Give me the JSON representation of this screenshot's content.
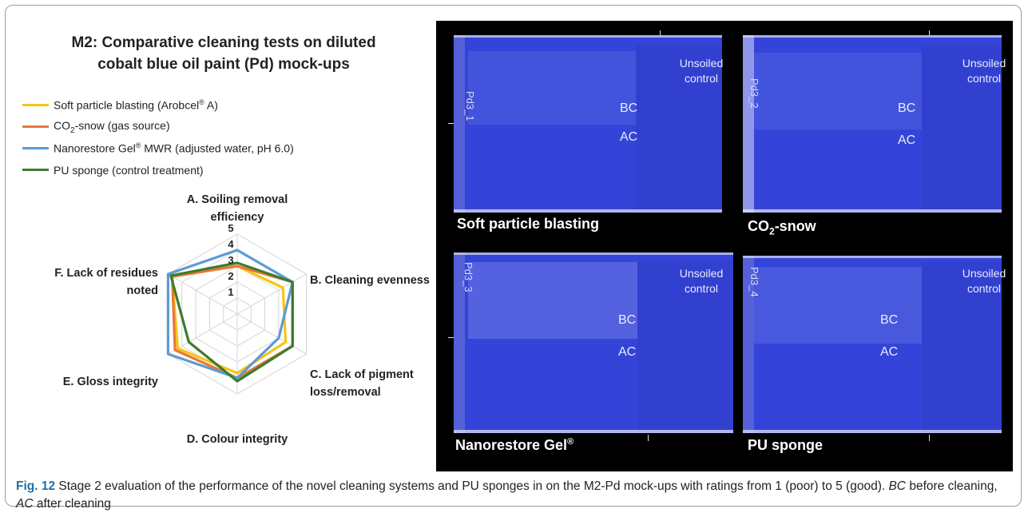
{
  "chart_data": {
    "type": "radar",
    "title": "M2: Comparative cleaning tests on diluted cobalt blue oil paint (Pd) mock-ups",
    "title_lines": [
      "M2: Comparative cleaning tests on diluted",
      "cobalt blue oil paint (Pd) mock-ups"
    ],
    "axes": [
      {
        "lines": [
          "A. Soiling removal",
          "efficiency"
        ]
      },
      {
        "lines": [
          "B. Cleaning evenness"
        ]
      },
      {
        "lines": [
          "C. Lack of pigment",
          "loss/removal"
        ]
      },
      {
        "lines": [
          "D. Colour integrity"
        ]
      },
      {
        "lines": [
          "E. Gloss integrity"
        ]
      },
      {
        "lines": [
          "F. Lack of residues",
          "noted"
        ]
      }
    ],
    "range": [
      0,
      5
    ],
    "ticks": [
      "1",
      "2",
      "3",
      "4",
      "5"
    ],
    "legend_position": "top-left",
    "grid": true,
    "series": [
      {
        "name_parts": [
          "Soft particle blasting (Arobcel",
          "®",
          " A)"
        ],
        "name": "Soft particle blasting (Arobcel® A)",
        "color": "#f5c518",
        "values": [
          3.0,
          3.3,
          3.5,
          3.7,
          4.3,
          4.7
        ]
      },
      {
        "name_parts": [
          "CO",
          "2",
          "-snow (gas source)"
        ],
        "name": "CO2-snow (gas source)",
        "color": "#e8783a",
        "values": [
          3.0,
          4.0,
          4.0,
          4.0,
          4.5,
          4.7
        ]
      },
      {
        "name_parts": [
          "Nanorestore Gel",
          "®",
          " MWR (adjusted water, pH 6.0)"
        ],
        "name": "Nanorestore Gel® MWR (adjusted water, pH 6.0)",
        "color": "#5b9bd5",
        "values": [
          4.0,
          4.0,
          3.0,
          4.0,
          5.0,
          5.0
        ]
      },
      {
        "name_parts": [
          "PU sponge (control treatment)"
        ],
        "name": "PU sponge (control treatment)",
        "color": "#3f7a2e",
        "values": [
          3.2,
          4.0,
          4.0,
          4.2,
          3.5,
          4.8
        ]
      }
    ]
  },
  "photos": {
    "tiles": [
      {
        "label_parts": [
          "Soft particle blasting"
        ],
        "edge_text": "Pd3_1"
      },
      {
        "label_parts": [
          "CO",
          "2",
          "-snow"
        ],
        "edge_text": "Pd3_2"
      },
      {
        "label_parts": [
          "Nanorestore Gel",
          "®"
        ],
        "edge_text": "Pd3_3"
      },
      {
        "label_parts": [
          "PU sponge"
        ],
        "edge_text": "Pd3_4"
      }
    ],
    "unsoiled_lines": [
      "Unsoiled",
      "control"
    ],
    "bc": "BC",
    "ac": "AC"
  },
  "caption": {
    "fig": "Fig. 12",
    "text_1": "  Stage 2 evaluation of the performance of the novel cleaning systems and PU sponges in on the M2-Pd mock-ups with ratings from 1 (poor) to 5 (good). ",
    "bc_abbr": "BC",
    "text_2": " before cleaning, ",
    "ac_abbr": "AC",
    "text_3": " after cleaning"
  }
}
